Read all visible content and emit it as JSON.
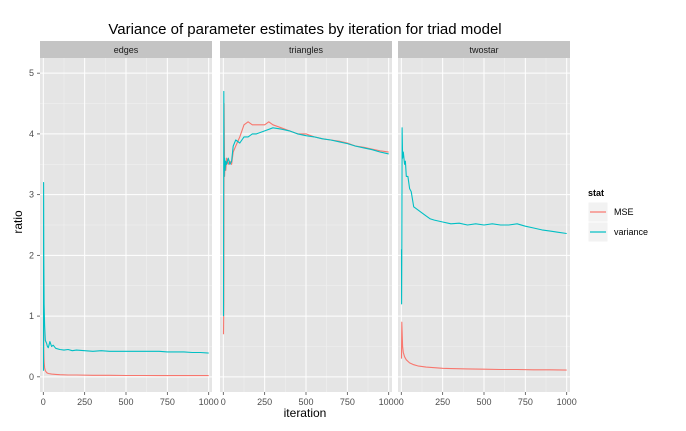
{
  "chart_data": {
    "type": "line",
    "title": "Variance of parameter estimates by iteration for triad model",
    "xlabel": "iteration",
    "ylabel": "ratio",
    "xlim": [
      -20,
      1020
    ],
    "ylim": [
      -0.25,
      5.25
    ],
    "x_ticks": [
      0,
      250,
      500,
      750,
      1000
    ],
    "y_ticks": [
      0,
      1,
      2,
      3,
      4,
      5
    ],
    "grid": true,
    "legend": {
      "title": "stat",
      "position": "right",
      "entries": [
        "MSE",
        "variance"
      ]
    },
    "colors": {
      "MSE": "#F8766D",
      "variance": "#00BFC4"
    },
    "panels": [
      {
        "name": "edges",
        "series": [
          {
            "name": "MSE",
            "x": [
              1,
              3,
              5,
              8,
              12,
              20,
              30,
              50,
              75,
              100,
              150,
              200,
              300,
              400,
              500,
              600,
              700,
              800,
              900,
              1000
            ],
            "y": [
              1.0,
              0.45,
              0.25,
              0.15,
              0.1,
              0.07,
              0.055,
              0.045,
              0.04,
              0.035,
              0.03,
              0.03,
              0.025,
              0.025,
              0.022,
              0.022,
              0.02,
              0.02,
              0.02,
              0.02
            ]
          },
          {
            "name": "variance",
            "x": [
              1,
              2,
              3,
              5,
              8,
              12,
              20,
              25,
              30,
              40,
              50,
              60,
              75,
              100,
              125,
              150,
              175,
              200,
              250,
              300,
              350,
              400,
              450,
              500,
              550,
              600,
              650,
              700,
              750,
              800,
              850,
              900,
              950,
              1000
            ],
            "y": [
              0.1,
              3.2,
              2.0,
              1.2,
              0.85,
              0.6,
              0.55,
              0.5,
              0.48,
              0.58,
              0.5,
              0.52,
              0.47,
              0.45,
              0.44,
              0.45,
              0.43,
              0.44,
              0.43,
              0.42,
              0.43,
              0.42,
              0.42,
              0.42,
              0.42,
              0.42,
              0.42,
              0.42,
              0.41,
              0.41,
              0.41,
              0.4,
              0.4,
              0.39
            ]
          }
        ]
      },
      {
        "name": "triangles",
        "series": [
          {
            "name": "MSE",
            "x": [
              1,
              3,
              5,
              8,
              10,
              15,
              20,
              30,
              40,
              50,
              60,
              75,
              100,
              125,
              150,
              175,
              200,
              250,
              275,
              300,
              350,
              400,
              450,
              500,
              550,
              600,
              650,
              700,
              750,
              800,
              850,
              900,
              950,
              1000
            ],
            "y": [
              0.7,
              1.2,
              4.5,
              3.3,
              3.5,
              3.4,
              3.6,
              3.5,
              3.55,
              3.5,
              3.7,
              3.8,
              3.95,
              4.15,
              4.2,
              4.15,
              4.15,
              4.15,
              4.2,
              4.15,
              4.1,
              4.05,
              4.0,
              4.0,
              3.95,
              3.92,
              3.9,
              3.88,
              3.85,
              3.8,
              3.78,
              3.75,
              3.72,
              3.7
            ]
          },
          {
            "name": "variance",
            "x": [
              1,
              3,
              5,
              8,
              10,
              15,
              20,
              30,
              40,
              50,
              60,
              75,
              100,
              125,
              150,
              175,
              200,
              250,
              300,
              350,
              400,
              450,
              500,
              550,
              600,
              650,
              700,
              750,
              800,
              850,
              900,
              950,
              1000
            ],
            "y": [
              1.0,
              4.7,
              3.3,
              3.6,
              3.4,
              3.55,
              3.5,
              3.6,
              3.5,
              3.55,
              3.8,
              3.9,
              3.85,
              3.95,
              3.95,
              4.0,
              4.0,
              4.05,
              4.1,
              4.08,
              4.05,
              4.0,
              3.97,
              3.95,
              3.92,
              3.9,
              3.87,
              3.84,
              3.8,
              3.77,
              3.74,
              3.7,
              3.67
            ]
          }
        ]
      },
      {
        "name": "twostar",
        "series": [
          {
            "name": "MSE",
            "x": [
              1,
              3,
              5,
              8,
              12,
              20,
              30,
              50,
              75,
              100,
              150,
              200,
              250,
              300,
              400,
              500,
              600,
              700,
              800,
              900,
              1000
            ],
            "y": [
              0.3,
              0.9,
              0.75,
              0.5,
              0.4,
              0.33,
              0.28,
              0.23,
              0.2,
              0.18,
              0.16,
              0.15,
              0.14,
              0.135,
              0.13,
              0.125,
              0.12,
              0.12,
              0.115,
              0.115,
              0.11
            ]
          },
          {
            "name": "variance",
            "x": [
              1,
              2,
              3,
              5,
              8,
              12,
              20,
              25,
              30,
              40,
              50,
              60,
              75,
              100,
              125,
              150,
              175,
              200,
              250,
              300,
              350,
              400,
              450,
              500,
              550,
              600,
              650,
              700,
              750,
              800,
              850,
              900,
              950,
              1000
            ],
            "y": [
              2.1,
              1.2,
              2.0,
              4.1,
              3.6,
              3.7,
              3.5,
              3.55,
              3.3,
              3.3,
              3.1,
              3.05,
              2.8,
              2.75,
              2.7,
              2.65,
              2.6,
              2.58,
              2.55,
              2.52,
              2.53,
              2.5,
              2.52,
              2.5,
              2.52,
              2.5,
              2.5,
              2.52,
              2.48,
              2.45,
              2.42,
              2.4,
              2.38,
              2.36
            ]
          }
        ]
      }
    ]
  }
}
